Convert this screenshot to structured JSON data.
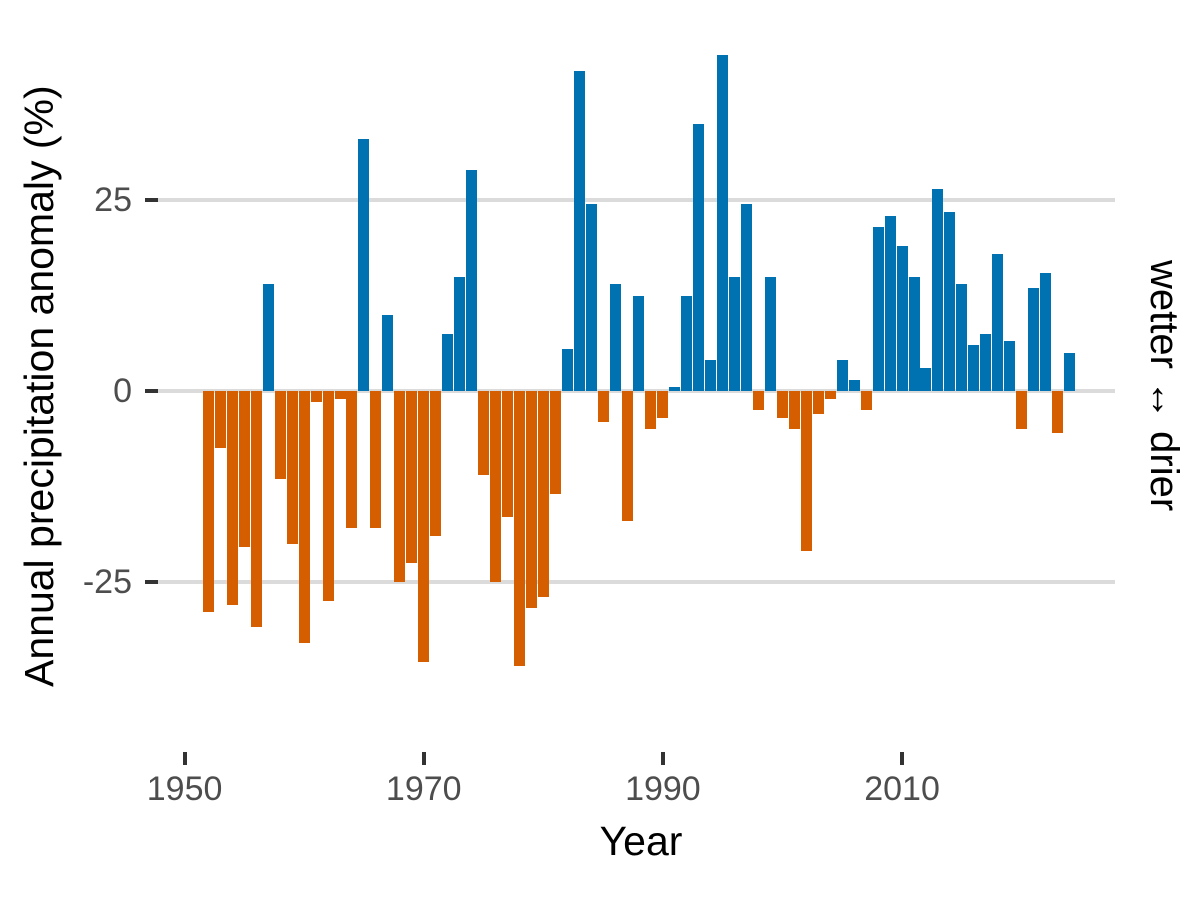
{
  "chart": {
    "y_axis_title": "Annual precipitation anomaly (%)",
    "x_axis_title": "Year",
    "right_label": "wetter ↔ drier",
    "y_ticks": [
      {
        "label": "25",
        "value": 25
      },
      {
        "label": "0",
        "value": 0
      },
      {
        "label": "-25",
        "value": -25
      }
    ],
    "x_ticks": [
      {
        "label": "1950",
        "year": 1950
      },
      {
        "label": "1970",
        "year": 1970
      },
      {
        "label": "1990",
        "year": 1990
      },
      {
        "label": "2010",
        "year": 2010
      }
    ],
    "colors": {
      "positive_bar": "#0072B2",
      "negative_bar": "#D55E00",
      "gridline": "#DBDBDB",
      "tick_mark": "#333333",
      "axis_text": "#4D4D4D",
      "title_text": "#000000",
      "background": "#FFFFFF"
    }
  },
  "chart_data": {
    "type": "bar",
    "title": "",
    "xlabel": "Year",
    "ylabel": "Annual precipitation anomaly (%)",
    "legend": "none",
    "grid": "horizontal-major",
    "ylim": [
      -47,
      50
    ],
    "xlim": [
      1948,
      2026
    ],
    "x": [
      1952,
      1953,
      1954,
      1955,
      1956,
      1957,
      1958,
      1959,
      1960,
      1961,
      1962,
      1963,
      1964,
      1965,
      1966,
      1967,
      1968,
      1969,
      1970,
      1971,
      1972,
      1973,
      1974,
      1975,
      1976,
      1977,
      1978,
      1979,
      1980,
      1981,
      1982,
      1983,
      1984,
      1985,
      1986,
      1987,
      1988,
      1989,
      1990,
      1991,
      1992,
      1993,
      1994,
      1995,
      1996,
      1997,
      1998,
      1999,
      2000,
      2001,
      2002,
      2003,
      2004,
      2005,
      2006,
      2007,
      2008,
      2009,
      2010,
      2011,
      2012,
      2013,
      2014,
      2015,
      2016,
      2017,
      2018,
      2019,
      2020,
      2021,
      2022,
      2023,
      2024
    ],
    "values": [
      -29,
      -7.5,
      -28,
      -20.5,
      -31,
      14,
      -11.5,
      -20,
      -33,
      -1.5,
      -27.5,
      -1,
      -18,
      33,
      -18,
      10,
      -25,
      -22.5,
      -35.5,
      -19,
      7.5,
      15,
      29,
      -11,
      -25,
      -16.5,
      -36,
      -28.5,
      -27,
      -13.5,
      5.5,
      42,
      24.5,
      -4,
      14,
      -17,
      12.5,
      -5,
      -3.5,
      0.5,
      12.5,
      35,
      4,
      44,
      15,
      24.5,
      -2.5,
      15,
      -3.5,
      -5,
      -21,
      -3,
      -1,
      4,
      1.5,
      -2.5,
      21.5,
      23,
      19,
      15,
      3,
      26.5,
      23.5,
      14,
      6,
      7.5,
      18,
      6.5,
      -5,
      13.5,
      15.5,
      -5.5,
      5
    ],
    "color_rule": "values >= 0 drawn blue (wetter), values < 0 drawn orange (drier)"
  }
}
